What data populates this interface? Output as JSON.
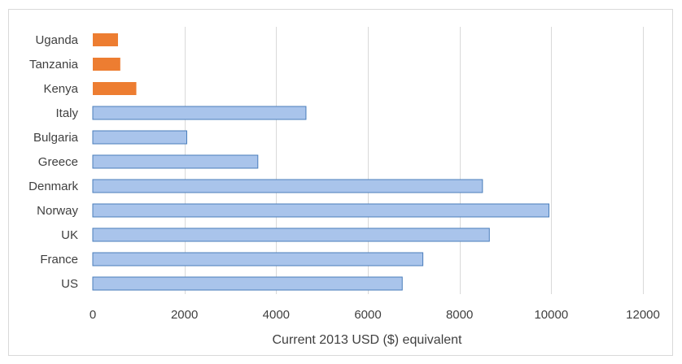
{
  "chart_data": {
    "type": "bar",
    "orientation": "horizontal",
    "title": "",
    "xlabel": "Current 2013 USD ($) equivalent",
    "ylabel": "",
    "xlim": [
      0,
      12000
    ],
    "xticks": [
      "0",
      "2000",
      "4000",
      "6000",
      "8000",
      "10000",
      "12000"
    ],
    "grid": true,
    "legend": "none",
    "categories": [
      "Uganda",
      "Tanzania",
      "Kenya",
      "Italy",
      "Bulgaria",
      "Greece",
      "Denmark",
      "Norway",
      "UK",
      "France",
      "US"
    ],
    "values": [
      550,
      600,
      950,
      4650,
      2050,
      3600,
      8500,
      9950,
      8650,
      7200,
      6750
    ],
    "bar_colors": [
      "#ED7D31",
      "#ED7D31",
      "#ED7D31",
      "#A9C4EB",
      "#A9C4EB",
      "#A9C4EB",
      "#A9C4EB",
      "#A9C4EB",
      "#A9C4EB",
      "#A9C4EB",
      "#A9C4EB"
    ],
    "colors": {
      "highlight": "#ED7D31",
      "default_fill": "#A9C4EB",
      "default_stroke": "#4A7EBB",
      "gridline": "#D9D9D9",
      "frame": "#D9D9D9",
      "text": "#404040"
    }
  }
}
